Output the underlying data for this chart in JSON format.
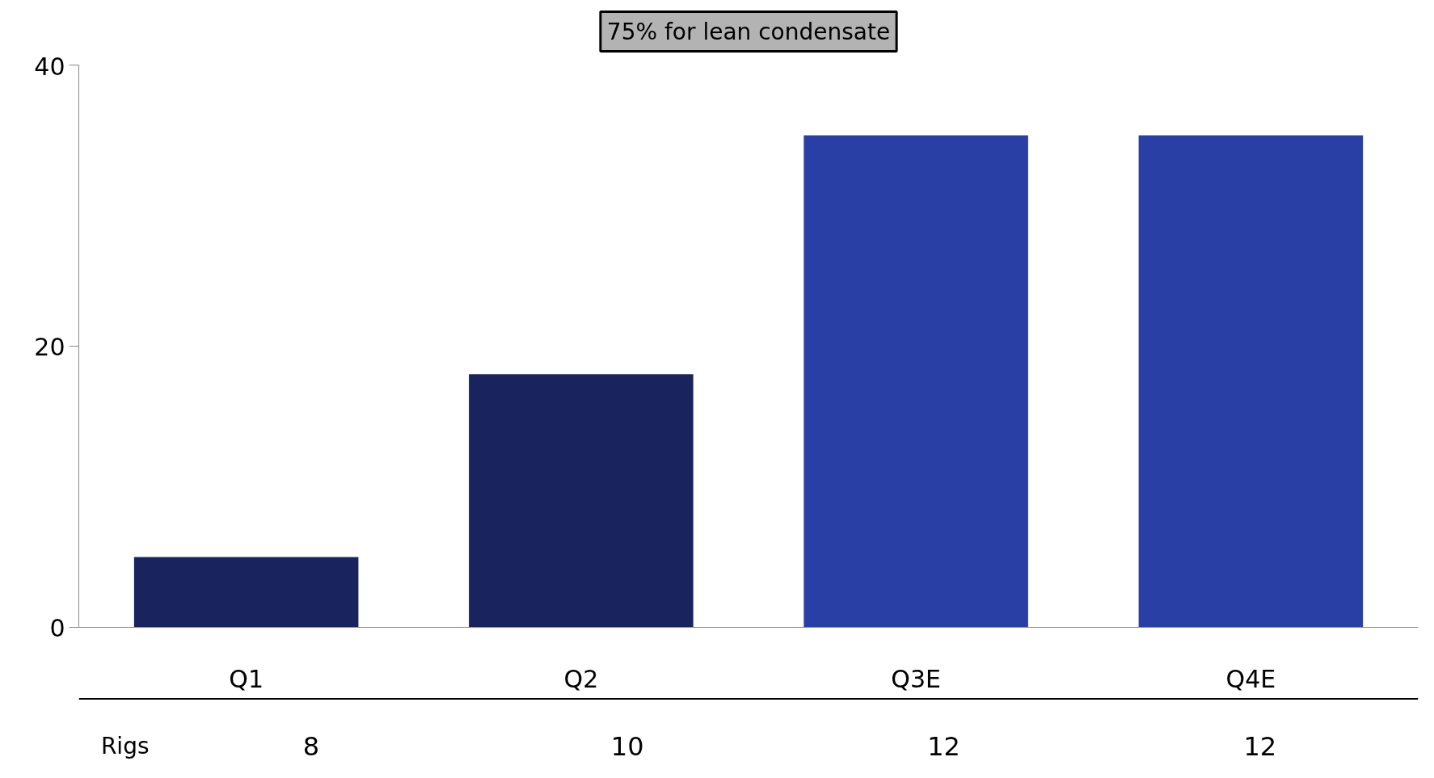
{
  "chart_data": {
    "type": "bar",
    "categories": [
      "Q1",
      "Q2",
      "Q3E",
      "Q4E"
    ],
    "values": [
      5,
      18,
      35,
      35
    ],
    "colors": [
      "#19235e",
      "#19235e",
      "#2a3fa5",
      "#2a3fa5"
    ],
    "ylim": [
      0,
      40
    ],
    "yticks": [
      0,
      20,
      40
    ],
    "grid": false,
    "annotations": [
      "75% for lean condensate",
      "Rigs",
      "8",
      "10",
      "12",
      "12"
    ]
  }
}
